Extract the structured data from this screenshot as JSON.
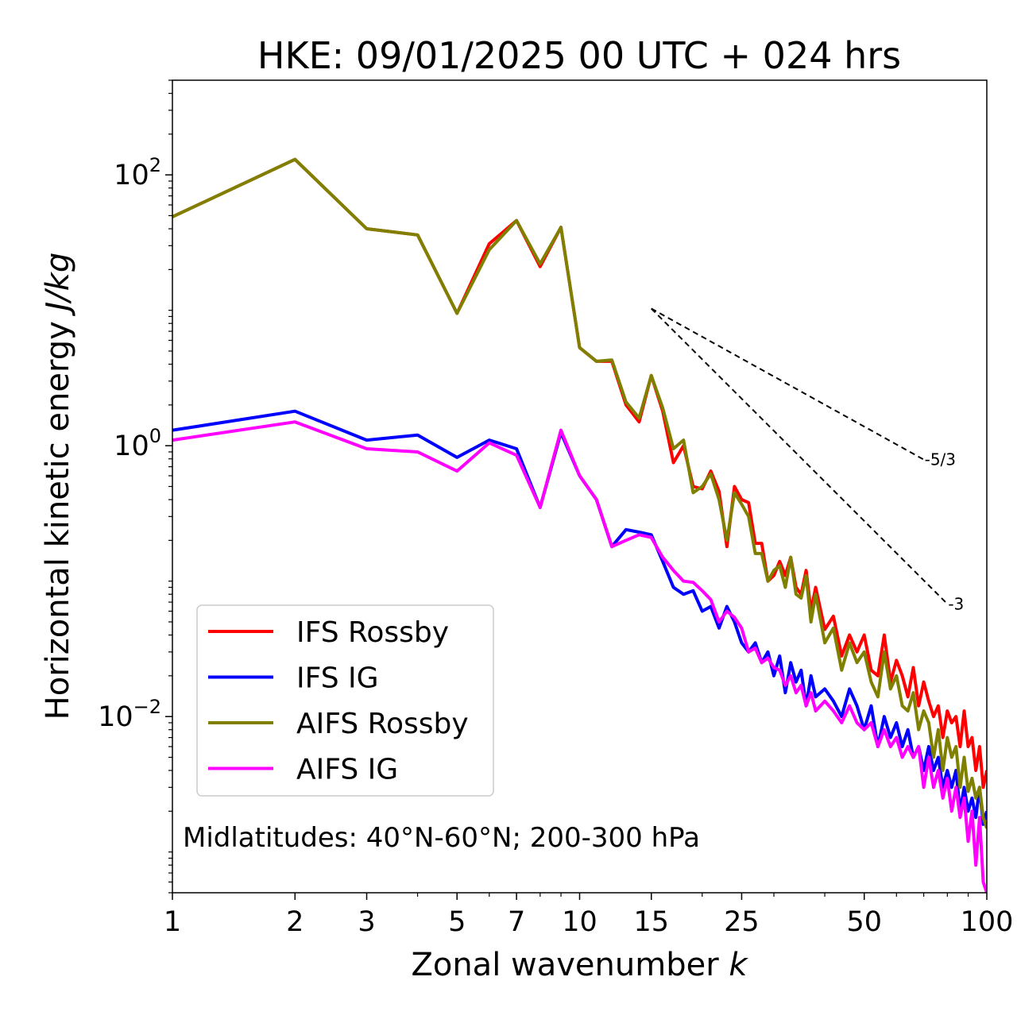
{
  "chart_data": {
    "type": "line",
    "title": "HKE: 09/01/2025 00 UTC + 024 hrs",
    "xlabel": "Zonal wavenumber k",
    "ylabel": "Horizontal kinetic energy J/kg",
    "xscale": "log",
    "yscale": "log",
    "xlim": [
      1,
      100
    ],
    "ylim": [
      0.0005,
      500
    ],
    "x_ticks": [
      1,
      2,
      3,
      5,
      7,
      10,
      15,
      25,
      50,
      100
    ],
    "x_tick_labels": [
      "1",
      "2",
      "3",
      "5",
      "7",
      "10",
      "15",
      "25",
      "50",
      "100"
    ],
    "y_ticks": [
      0.01,
      1,
      100
    ],
    "y_tick_labels": [
      [
        "10",
        "−2"
      ],
      [
        "10",
        "0"
      ],
      [
        "10",
        "2"
      ]
    ],
    "legend_position": "lower-left",
    "annotation": "Midlatitudes: 40°N-60°N; 200-300 hPa",
    "reference_lines": [
      {
        "label": "-5/3",
        "slope": -1.6667,
        "x_start": 15,
        "x_end": 70,
        "y_start": 10.3
      },
      {
        "label": "-3",
        "slope": -3,
        "x_start": 15,
        "x_end": 80,
        "y_start": 10.3
      }
    ],
    "series": [
      {
        "name": "IFS Rossby",
        "color": "#ff0000",
        "x": [
          1,
          2,
          3,
          4,
          5,
          6,
          7,
          8,
          9,
          10,
          11,
          12,
          13,
          14,
          15,
          16,
          17,
          18,
          19,
          20,
          21,
          22,
          23,
          24,
          25,
          26,
          27,
          28,
          29,
          30,
          31,
          32,
          33,
          34,
          35,
          36,
          37,
          38,
          40,
          42,
          44,
          46,
          48,
          50,
          52,
          54,
          56,
          58,
          60,
          62,
          64,
          66,
          68,
          70,
          72,
          74,
          76,
          78,
          80,
          82,
          84,
          86,
          88,
          90,
          92,
          94,
          96,
          98,
          100
        ],
        "y": [
          49,
          130,
          40,
          36,
          9.5,
          31,
          46,
          21,
          41,
          5.3,
          4.2,
          4.2,
          2.0,
          1.5,
          3.3,
          1.8,
          0.75,
          1.0,
          0.5,
          0.48,
          0.65,
          0.46,
          0.18,
          0.5,
          0.4,
          0.38,
          0.19,
          0.19,
          0.1,
          0.11,
          0.14,
          0.11,
          0.15,
          0.09,
          0.08,
          0.12,
          0.06,
          0.09,
          0.044,
          0.055,
          0.028,
          0.04,
          0.03,
          0.04,
          0.022,
          0.02,
          0.04,
          0.018,
          0.026,
          0.02,
          0.014,
          0.023,
          0.012,
          0.018,
          0.013,
          0.01,
          0.012,
          0.007,
          0.011,
          0.009,
          0.01,
          0.006,
          0.011,
          0.006,
          0.007,
          0.004,
          0.006,
          0.003,
          0.004
        ]
      },
      {
        "name": "IFS IG",
        "color": "#0000ff",
        "x": [
          1,
          2,
          3,
          4,
          5,
          6,
          7,
          8,
          9,
          10,
          11,
          12,
          13,
          14,
          15,
          16,
          17,
          18,
          19,
          20,
          21,
          22,
          23,
          24,
          25,
          26,
          27,
          28,
          29,
          30,
          31,
          32,
          33,
          34,
          35,
          36,
          37,
          38,
          40,
          42,
          44,
          46,
          48,
          50,
          52,
          54,
          56,
          58,
          60,
          62,
          64,
          66,
          68,
          70,
          72,
          74,
          76,
          78,
          80,
          82,
          84,
          86,
          88,
          90,
          92,
          94,
          96,
          98,
          100
        ],
        "y": [
          1.3,
          1.8,
          1.1,
          1.2,
          0.82,
          1.1,
          0.95,
          0.35,
          1.25,
          0.6,
          0.4,
          0.18,
          0.24,
          0.23,
          0.22,
          0.14,
          0.09,
          0.08,
          0.085,
          0.06,
          0.065,
          0.045,
          0.065,
          0.05,
          0.035,
          0.03,
          0.035,
          0.025,
          0.03,
          0.02,
          0.028,
          0.015,
          0.025,
          0.018,
          0.022,
          0.012,
          0.02,
          0.014,
          0.016,
          0.013,
          0.01,
          0.016,
          0.012,
          0.008,
          0.012,
          0.006,
          0.01,
          0.007,
          0.009,
          0.006,
          0.008,
          0.005,
          0.006,
          0.004,
          0.006,
          0.004,
          0.005,
          0.003,
          0.004,
          0.003,
          0.004,
          0.002,
          0.003,
          0.002,
          0.0025,
          0.0018,
          0.003,
          0.0016,
          0.002
        ]
      },
      {
        "name": "AIFS Rossby",
        "color": "#808000",
        "x": [
          1,
          2,
          3,
          4,
          5,
          6,
          7,
          8,
          9,
          10,
          11,
          12,
          13,
          14,
          15,
          16,
          17,
          18,
          19,
          20,
          21,
          22,
          23,
          24,
          25,
          26,
          27,
          28,
          29,
          30,
          31,
          32,
          33,
          34,
          35,
          36,
          37,
          38,
          40,
          42,
          44,
          46,
          48,
          50,
          52,
          54,
          56,
          58,
          60,
          62,
          64,
          66,
          68,
          70,
          72,
          74,
          76,
          78,
          80,
          82,
          84,
          86,
          88,
          90,
          92,
          94,
          96,
          98,
          100
        ],
        "y": [
          49,
          130,
          40,
          36,
          9.5,
          28,
          46,
          22,
          41,
          5.3,
          4.2,
          4.3,
          2.1,
          1.6,
          3.3,
          1.9,
          0.95,
          1.1,
          0.45,
          0.5,
          0.62,
          0.4,
          0.2,
          0.45,
          0.37,
          0.3,
          0.16,
          0.16,
          0.1,
          0.12,
          0.13,
          0.09,
          0.15,
          0.08,
          0.075,
          0.11,
          0.05,
          0.08,
          0.035,
          0.045,
          0.022,
          0.035,
          0.025,
          0.03,
          0.018,
          0.014,
          0.03,
          0.016,
          0.02,
          0.012,
          0.011,
          0.015,
          0.008,
          0.011,
          0.009,
          0.005,
          0.008,
          0.004,
          0.007,
          0.005,
          0.006,
          0.003,
          0.005,
          0.0028,
          0.0035,
          0.0025,
          0.003,
          0.0018,
          0.0015
        ]
      },
      {
        "name": "AIFS IG",
        "color": "#ff00ff",
        "x": [
          1,
          2,
          3,
          4,
          5,
          6,
          7,
          8,
          9,
          10,
          11,
          12,
          13,
          14,
          15,
          16,
          17,
          18,
          19,
          20,
          21,
          22,
          23,
          24,
          25,
          26,
          27,
          28,
          29,
          30,
          31,
          32,
          33,
          34,
          35,
          36,
          37,
          38,
          40,
          42,
          44,
          46,
          48,
          50,
          52,
          54,
          56,
          58,
          60,
          62,
          64,
          66,
          68,
          70,
          72,
          74,
          76,
          78,
          80,
          82,
          84,
          86,
          88,
          90,
          92,
          94,
          96,
          98,
          100
        ],
        "y": [
          1.1,
          1.5,
          0.95,
          0.9,
          0.65,
          1.05,
          0.85,
          0.35,
          1.3,
          0.6,
          0.4,
          0.18,
          0.2,
          0.22,
          0.21,
          0.15,
          0.12,
          0.1,
          0.098,
          0.085,
          0.073,
          0.05,
          0.06,
          0.054,
          0.045,
          0.03,
          0.032,
          0.025,
          0.027,
          0.023,
          0.022,
          0.017,
          0.02,
          0.015,
          0.017,
          0.012,
          0.015,
          0.011,
          0.013,
          0.011,
          0.009,
          0.012,
          0.009,
          0.008,
          0.009,
          0.006,
          0.008,
          0.006,
          0.007,
          0.005,
          0.006,
          0.005,
          0.006,
          0.003,
          0.005,
          0.003,
          0.004,
          0.0025,
          0.0035,
          0.002,
          0.003,
          0.0018,
          0.0025,
          0.0012,
          0.002,
          0.0008,
          0.0018,
          0.0006,
          0.0005
        ]
      }
    ]
  }
}
